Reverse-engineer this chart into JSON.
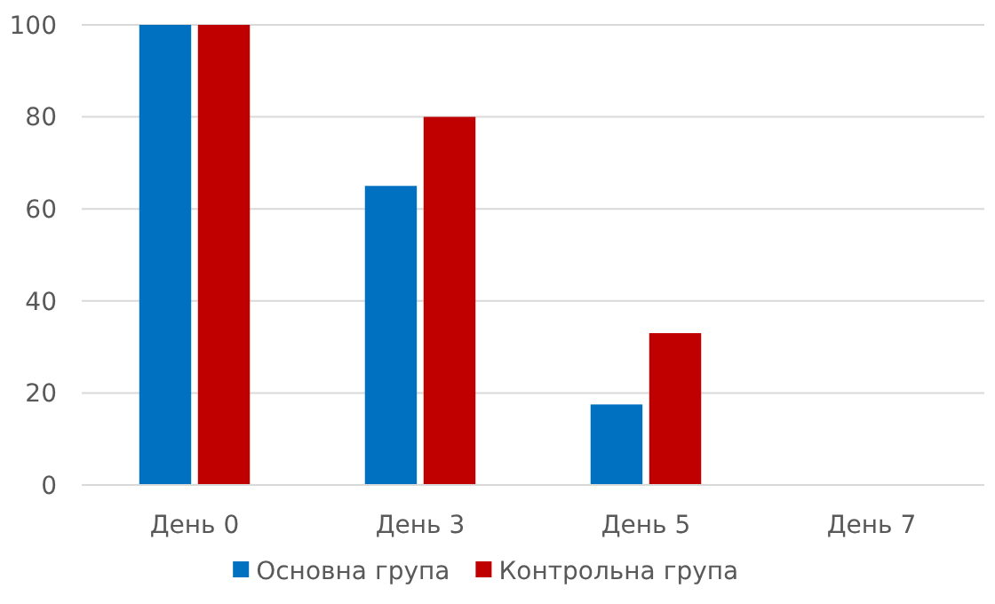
{
  "chart_data": {
    "type": "bar",
    "categories": [
      "День 0",
      "День 3",
      "День 5",
      "День 7"
    ],
    "series": [
      {
        "name": "Основна група",
        "color": "#0070c0",
        "values": [
          100,
          65,
          17.5,
          0
        ]
      },
      {
        "name": "Контрольна група",
        "color": "#c00000",
        "values": [
          100,
          80,
          33,
          0
        ]
      }
    ],
    "ylim": [
      0,
      100
    ],
    "yticks": [
      0,
      20,
      40,
      60,
      80,
      100
    ],
    "grid": "y",
    "legend": "bottom"
  }
}
